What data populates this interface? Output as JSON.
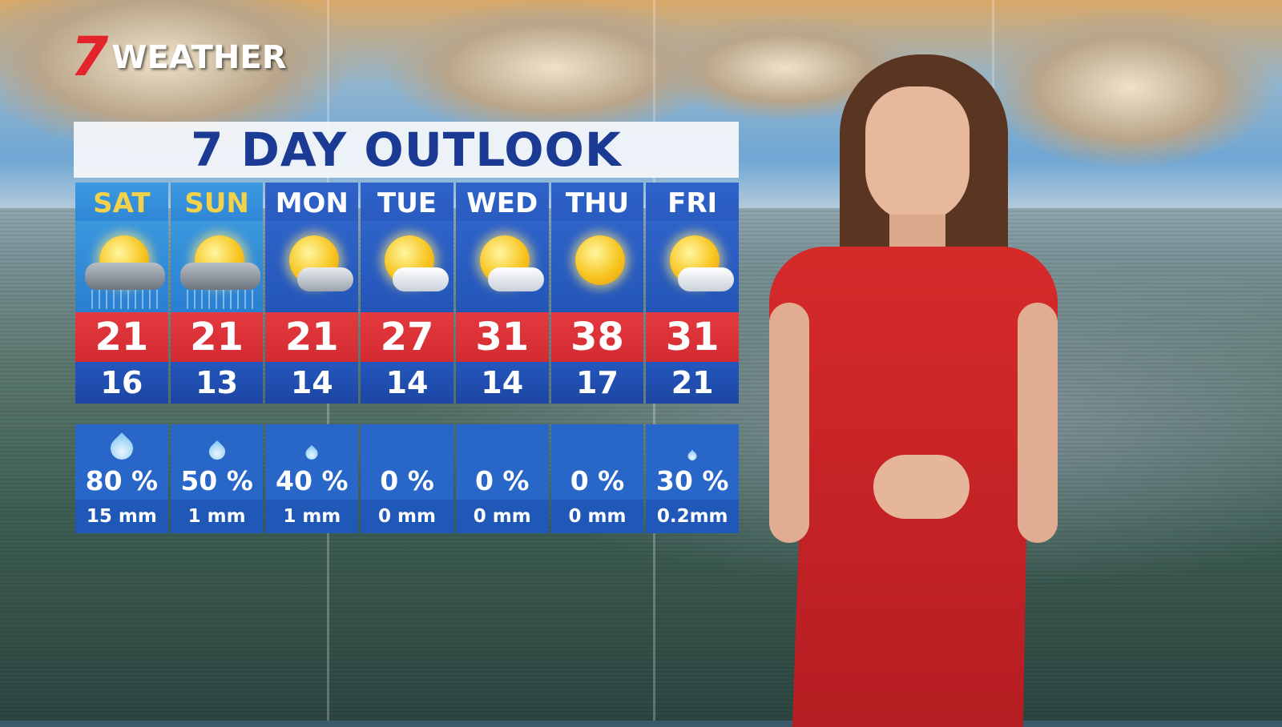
{
  "logo": {
    "seven": "7",
    "text": "WEATHER",
    "brand_color": "#e3252b"
  },
  "title": "7 DAY OUTLOOK",
  "colors": {
    "high_band": "#e33a3f",
    "low_band": "#1d46a3",
    "weekend_day": "#f2d24a"
  },
  "days": [
    {
      "day": "SAT",
      "icon": "sun-cloud-rain-icon",
      "high": "21",
      "low": "16",
      "chance": "80 %",
      "rain": "15 mm"
    },
    {
      "day": "SUN",
      "icon": "sun-cloud-rain-icon",
      "high": "21",
      "low": "13",
      "chance": "50 %",
      "rain": "1 mm"
    },
    {
      "day": "MON",
      "icon": "sun-grey-cloud-icon",
      "high": "21",
      "low": "14",
      "chance": "40 %",
      "rain": "1 mm"
    },
    {
      "day": "TUE",
      "icon": "mostly-sunny-icon",
      "high": "27",
      "low": "14",
      "chance": "0 %",
      "rain": "0 mm"
    },
    {
      "day": "WED",
      "icon": "mostly-sunny-icon",
      "high": "31",
      "low": "14",
      "chance": "0 %",
      "rain": "0 mm"
    },
    {
      "day": "THU",
      "icon": "sunny-icon",
      "high": "38",
      "low": "17",
      "chance": "0 %",
      "rain": "0 mm"
    },
    {
      "day": "FRI",
      "icon": "mostly-sunny-icon",
      "high": "31",
      "low": "21",
      "chance": "30 %",
      "rain": "0.2mm"
    }
  ]
}
